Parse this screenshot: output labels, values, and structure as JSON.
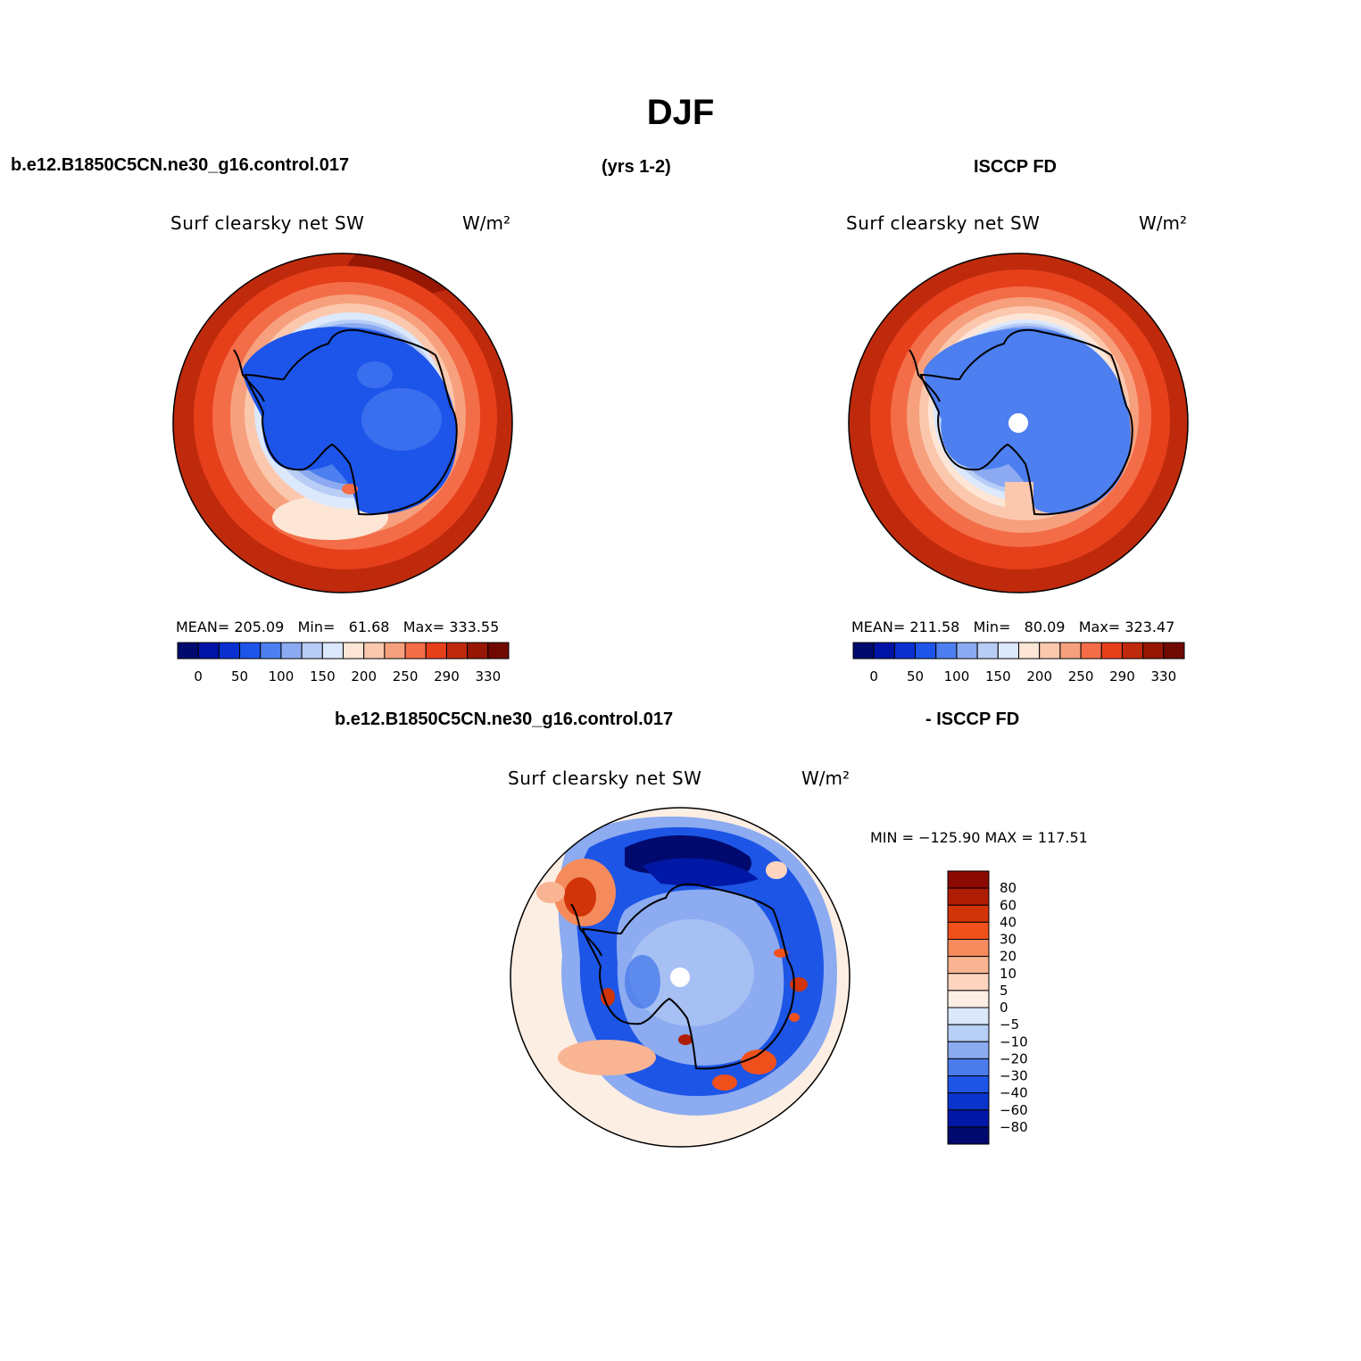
{
  "title": "DJF",
  "header_top": {
    "case": "b.e12.B1850C5CN.ne30_g16.control.017",
    "years": "(yrs 1-2)",
    "obs": "ISCCP FD"
  },
  "header_bottom": {
    "case": "b.e12.B1850C5CN.ne30_g16.control.017",
    "obs": "- ISCCP FD"
  },
  "panels": [
    {
      "id": "model",
      "title": "Surf  clearsky  net  SW",
      "units": "W/m²",
      "mean_label": "MEAN=",
      "mean": "205.09",
      "min_label": "Min=",
      "min": "61.68",
      "max_label": "Max=",
      "max": "333.55"
    },
    {
      "id": "obs",
      "title": "Surf  clearsky  net  SW",
      "units": "W/m²",
      "mean_label": "MEAN=",
      "mean": "211.58",
      "min_label": "Min=",
      "min": "80.09",
      "max_label": "Max=",
      "max": "323.47"
    },
    {
      "id": "diff",
      "title": "Surf  clearsky  net  SW",
      "units": "W/m²",
      "minmax": "MIN = −125.90 MAX = 117.51"
    }
  ],
  "abs_colorbar": {
    "colors": [
      "#000a6e",
      "#0013a6",
      "#0a30d0",
      "#1d55ea",
      "#4d7ff0",
      "#8caaf2",
      "#b8cdf6",
      "#dce8fb",
      "#fde6d6",
      "#fbc8ae",
      "#f7a07e",
      "#f36d48",
      "#e6401b",
      "#bf2a0c",
      "#961704",
      "#700a00"
    ],
    "labels": [
      "0",
      "50",
      "100",
      "150",
      "200",
      "250",
      "290",
      "330"
    ]
  },
  "diff_colorbar": {
    "colors": [
      "#8b0b03",
      "#b01d05",
      "#d13408",
      "#f0501c",
      "#f58b5c",
      "#f9b493",
      "#fdd5bf",
      "#fdeee3",
      "#dbe7fa",
      "#b8cff6",
      "#8cabf0",
      "#4b7ceb",
      "#1d55e6",
      "#0a34cc",
      "#0018a5",
      "#000a6e"
    ],
    "labels": [
      "80",
      "60",
      "40",
      "30",
      "20",
      "10",
      "5",
      "0",
      "−5",
      "−10",
      "−20",
      "−30",
      "−40",
      "−60",
      "−80"
    ]
  }
}
